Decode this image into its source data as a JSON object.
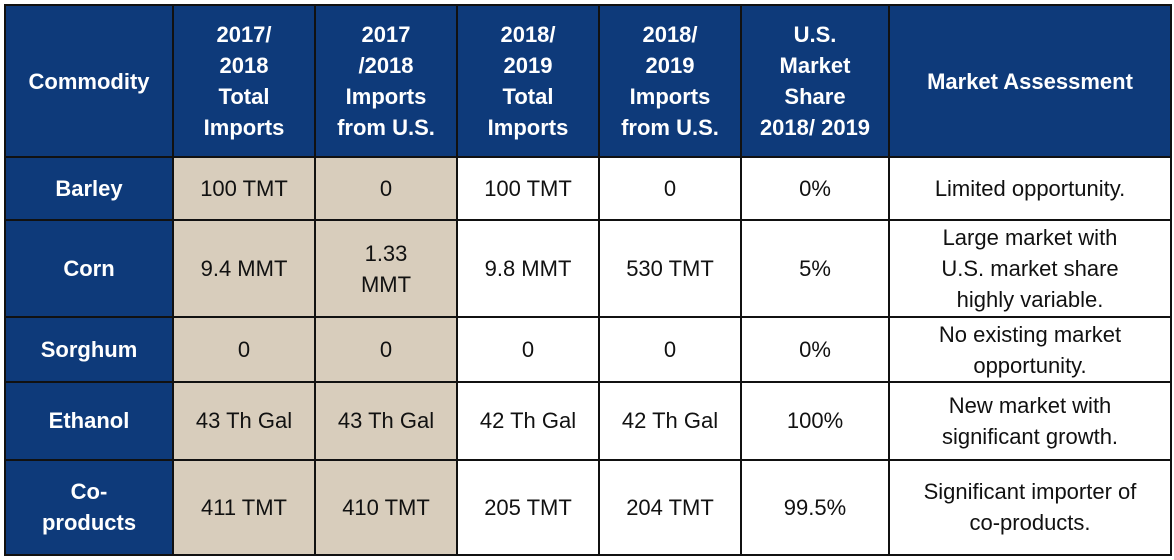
{
  "colors": {
    "header_bg": "#0e3a7a",
    "header_text": "#ffffff",
    "highlight_bg": "#d8cdbc",
    "cell_bg": "#ffffff",
    "border": "#111111"
  },
  "table": {
    "headers": [
      [
        "Commodity"
      ],
      [
        "2017/",
        "2018",
        "Total",
        "Imports"
      ],
      [
        "2017",
        "/2018",
        "Imports",
        "from U.S."
      ],
      [
        "2018/",
        "2019",
        "Total",
        "Imports"
      ],
      [
        "2018/",
        "2019",
        "Imports",
        "from U.S."
      ],
      [
        "U.S.",
        "Market",
        "Share",
        "2018/ 2019"
      ],
      [
        "Market Assessment"
      ]
    ],
    "rows": [
      {
        "commodity": [
          "Barley"
        ],
        "total_1718": [
          "100 TMT"
        ],
        "us_1718": [
          "0"
        ],
        "total_1819": [
          "100 TMT"
        ],
        "us_1819": [
          "0"
        ],
        "share": [
          "0%"
        ],
        "assessment": [
          "Limited opportunity."
        ]
      },
      {
        "commodity": [
          "Corn"
        ],
        "total_1718": [
          "9.4 MMT"
        ],
        "us_1718": [
          "1.33",
          "MMT"
        ],
        "total_1819": [
          "9.8 MMT"
        ],
        "us_1819": [
          "530 TMT"
        ],
        "share": [
          "5%"
        ],
        "assessment": [
          "Large market with",
          "U.S. market share",
          "highly variable."
        ]
      },
      {
        "commodity": [
          "Sorghum"
        ],
        "total_1718": [
          "0"
        ],
        "us_1718": [
          "0"
        ],
        "total_1819": [
          "0"
        ],
        "us_1819": [
          "0"
        ],
        "share": [
          "0%"
        ],
        "assessment": [
          "No existing market",
          "opportunity."
        ]
      },
      {
        "commodity": [
          "Ethanol"
        ],
        "total_1718": [
          "43 Th Gal"
        ],
        "us_1718": [
          "43 Th Gal"
        ],
        "total_1819": [
          "42 Th Gal"
        ],
        "us_1819": [
          "42 Th Gal"
        ],
        "share": [
          "100%"
        ],
        "assessment": [
          "New market with",
          "significant growth."
        ]
      },
      {
        "commodity": [
          "Co-",
          "products"
        ],
        "total_1718": [
          "411 TMT"
        ],
        "us_1718": [
          "410 TMT"
        ],
        "total_1819": [
          "205 TMT"
        ],
        "us_1819": [
          "204 TMT"
        ],
        "share": [
          "99.5%"
        ],
        "assessment": [
          "Significant importer of",
          "co-products."
        ]
      }
    ]
  }
}
